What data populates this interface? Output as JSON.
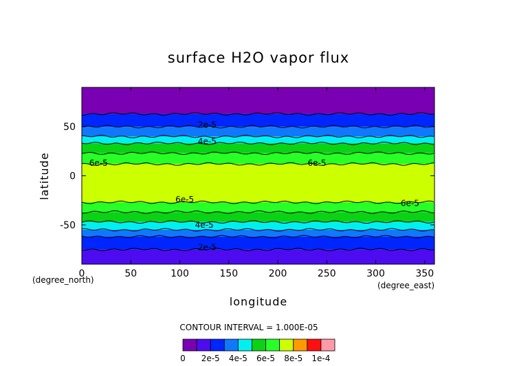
{
  "chart_data": {
    "type": "contour",
    "title": "surface H2O vapor flux",
    "xlabel": "longitude",
    "ylabel": "latitude",
    "x_unit": "(degree_east)",
    "y_unit": "(degree_north)",
    "xlim": [
      0,
      360
    ],
    "ylim": [
      -90,
      90
    ],
    "x_ticks": [
      0,
      50,
      100,
      150,
      200,
      250,
      300,
      350
    ],
    "y_ticks": [
      -50,
      0,
      50
    ],
    "contour_interval_text": "CONTOUR INTERVAL = 1.000E-05",
    "levels": [
      0,
      1e-05,
      2e-05,
      3e-05,
      4e-05,
      5e-05,
      6e-05,
      7e-05,
      8e-05,
      9e-05,
      0.0001
    ],
    "colors": [
      "#7a00b4",
      "#4d0cf0",
      "#0026ff",
      "#0f78ff",
      "#00f0f0",
      "#0ad214",
      "#27ff27",
      "#ccff00",
      "#ff9a00",
      "#ff1010",
      "#ff9aaa"
    ],
    "colorbar_labels": [
      "0",
      "2e-5",
      "4e-5",
      "6e-5",
      "8e-5",
      "1e-4"
    ],
    "bands": [
      {
        "lat_from": 63,
        "lat_to": 90,
        "value_class": 0
      },
      {
        "lat_from": 50,
        "lat_to": 63,
        "value_class": 2
      },
      {
        "lat_from": 40,
        "lat_to": 50,
        "value_class": 3
      },
      {
        "lat_from": 33,
        "lat_to": 40,
        "value_class": 4
      },
      {
        "lat_from": 23,
        "lat_to": 33,
        "value_class": 5
      },
      {
        "lat_from": 12,
        "lat_to": 23,
        "value_class": 6
      },
      {
        "lat_from": -27,
        "lat_to": 12,
        "value_class": 7
      },
      {
        "lat_from": -37,
        "lat_to": -27,
        "value_class": 6
      },
      {
        "lat_from": -47,
        "lat_to": -37,
        "value_class": 5
      },
      {
        "lat_from": -55,
        "lat_to": -47,
        "value_class": 4
      },
      {
        "lat_from": -62,
        "lat_to": -55,
        "value_class": 3
      },
      {
        "lat_from": -75,
        "lat_to": -62,
        "value_class": 2
      },
      {
        "lat_from": -90,
        "lat_to": -75,
        "value_class": 1
      }
    ],
    "contour_labels": [
      {
        "text": "2e-5",
        "lon": 128,
        "lat": 52
      },
      {
        "text": "4e-5",
        "lon": 128,
        "lat": 35
      },
      {
        "text": "6e-5",
        "lon": 17,
        "lat": 13
      },
      {
        "text": "6e-5",
        "lon": 240,
        "lat": 13
      },
      {
        "text": "6e-5",
        "lon": 105,
        "lat": -24
      },
      {
        "text": "6e-5",
        "lon": 335,
        "lat": -28
      },
      {
        "text": "4e-5",
        "lon": 125,
        "lat": -50
      },
      {
        "text": "2e-5",
        "lon": 128,
        "lat": -73
      }
    ]
  }
}
